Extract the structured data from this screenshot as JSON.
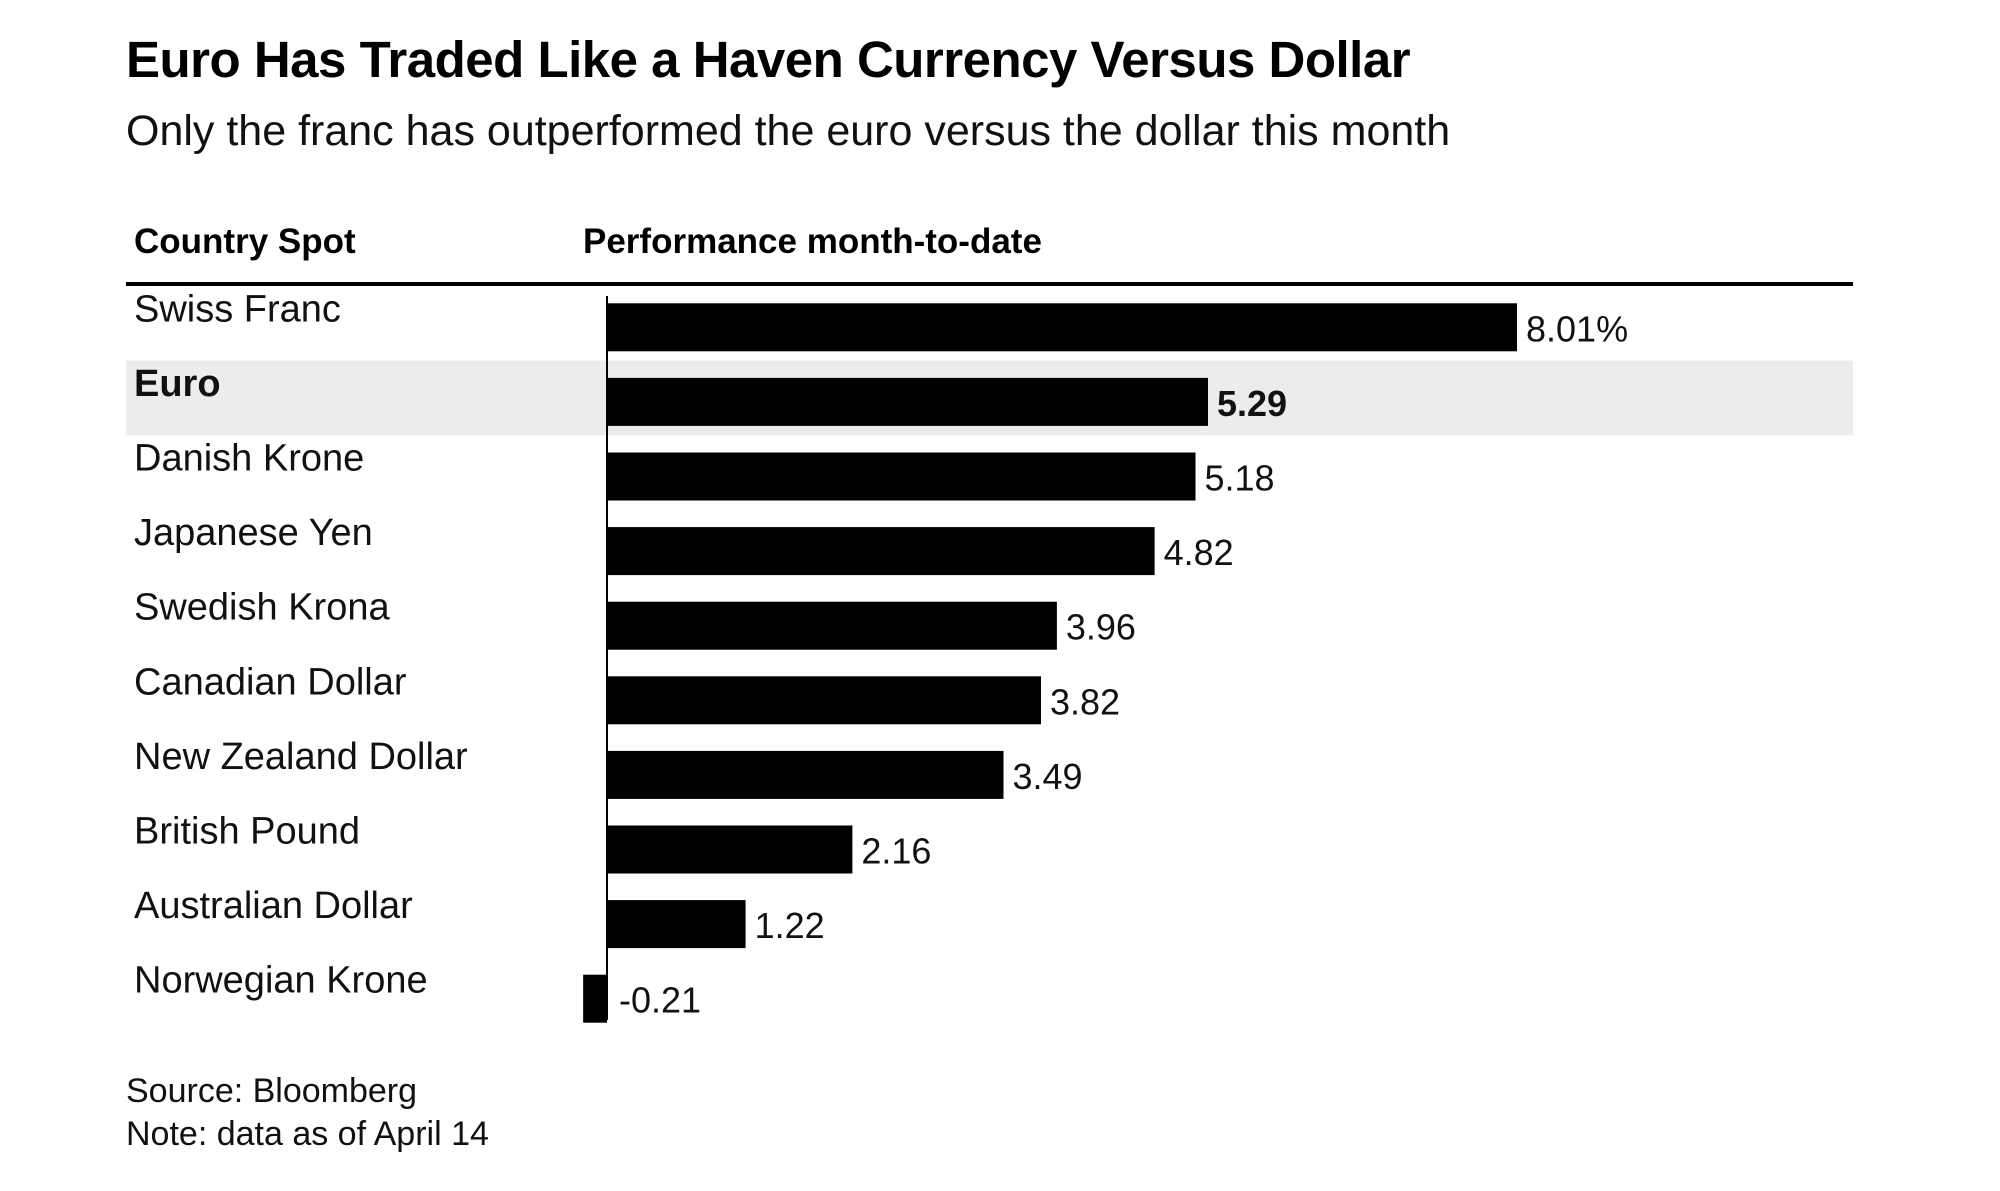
{
  "chart_data": {
    "type": "bar",
    "orientation": "horizontal",
    "title": "Euro Has Traded Like a Haven Currency Versus Dollar",
    "subtitle": "Only the franc has outperformed the euro versus the dollar this month",
    "column_headers": {
      "category": "Country Spot",
      "value": "Performance month-to-date"
    },
    "categories": [
      "Swiss Franc",
      "Euro",
      "Danish Krone",
      "Japanese Yen",
      "Swedish Krona",
      "Canadian Dollar",
      "New Zealand Dollar",
      "British Pound",
      "Australian Dollar",
      "Norwegian Krone"
    ],
    "values": [
      8.01,
      5.29,
      5.18,
      4.82,
      3.96,
      3.82,
      3.49,
      2.16,
      1.22,
      -0.21
    ],
    "value_labels": [
      "8.01%",
      "5.29",
      "5.18",
      "4.82",
      "3.96",
      "3.82",
      "3.49",
      "2.16",
      "1.22",
      "-0.21"
    ],
    "highlight": "Euro",
    "bar_color": "#000000",
    "highlight_row_color": "#ececec",
    "xlim": [
      -0.21,
      8.01
    ],
    "grid": false,
    "legend": "none"
  },
  "footer": {
    "source": "Source: Bloomberg",
    "note": "Note: data as of April 14"
  }
}
